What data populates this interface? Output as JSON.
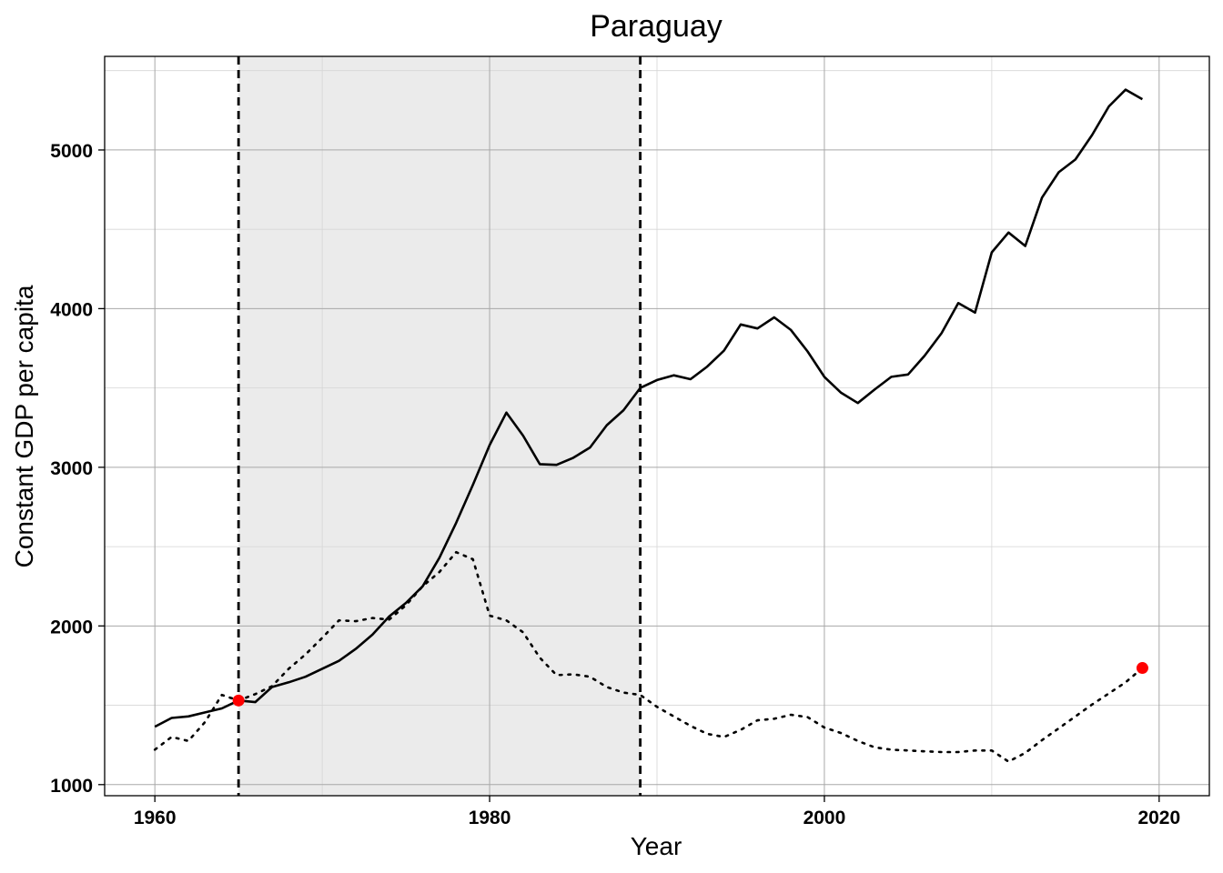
{
  "chart_data": {
    "type": "line",
    "title": "Paraguay",
    "xlabel": "Year",
    "ylabel": "Constant GDP per capita",
    "xlim": [
      1957,
      2023
    ],
    "ylim": [
      930,
      5590
    ],
    "x_ticks": [
      1960,
      1980,
      2000,
      2020
    ],
    "y_ticks": [
      1000,
      2000,
      3000,
      4000,
      5000
    ],
    "grid": true,
    "legend": "none",
    "shaded_period": [
      1965,
      1989
    ],
    "vertical_lines": [
      1965,
      1989
    ],
    "series": [
      {
        "style": "solid",
        "color": "#000000",
        "x": [
          1960,
          1961,
          1962,
          1963,
          1964,
          1965,
          1966,
          1967,
          1968,
          1969,
          1970,
          1971,
          1972,
          1973,
          1974,
          1975,
          1976,
          1977,
          1978,
          1979,
          1980,
          1981,
          1982,
          1983,
          1984,
          1985,
          1986,
          1987,
          1988,
          1989,
          1990,
          1991,
          1992,
          1993,
          1994,
          1995,
          1996,
          1997,
          1998,
          1999,
          2000,
          2001,
          2002,
          2003,
          2004,
          2005,
          2006,
          2007,
          2008,
          2009,
          2010,
          2011,
          2012,
          2013,
          2014,
          2015,
          2016,
          2017,
          2018,
          2019
        ],
        "values": [
          1365,
          1420,
          1430,
          1455,
          1480,
          1530,
          1520,
          1615,
          1645,
          1680,
          1730,
          1780,
          1855,
          1945,
          2060,
          2145,
          2250,
          2430,
          2650,
          2890,
          3140,
          3345,
          3200,
          3020,
          3015,
          3060,
          3125,
          3265,
          3360,
          3500,
          3550,
          3580,
          3555,
          3635,
          3735,
          3900,
          3875,
          3945,
          3865,
          3730,
          3570,
          3470,
          3405,
          3490,
          3570,
          3585,
          3705,
          3845,
          4035,
          3975,
          4355,
          4480,
          4395,
          4700,
          4860,
          4940,
          5095,
          5275,
          5380,
          5320
        ]
      },
      {
        "style": "dotted",
        "color": "#000000",
        "x": [
          1960,
          1961,
          1962,
          1963,
          1964,
          1965,
          1966,
          1967,
          1968,
          1969,
          1970,
          1971,
          1972,
          1973,
          1974,
          1975,
          1976,
          1977,
          1978,
          1979,
          1980,
          1981,
          1982,
          1983,
          1984,
          1985,
          1986,
          1987,
          1988,
          1989,
          1990,
          1991,
          1992,
          1993,
          1994,
          1995,
          1996,
          1997,
          1998,
          1999,
          2000,
          2001,
          2002,
          2003,
          2004,
          2005,
          2006,
          2007,
          2008,
          2009,
          2010,
          2011,
          2012,
          2013,
          2014,
          2015,
          2016,
          2017,
          2018,
          2019
        ],
        "values": [
          1220,
          1300,
          1275,
          1395,
          1565,
          1530,
          1570,
          1620,
          1730,
          1820,
          1925,
          2035,
          2030,
          2050,
          2040,
          2130,
          2250,
          2340,
          2465,
          2420,
          2065,
          2035,
          1960,
          1800,
          1690,
          1695,
          1680,
          1615,
          1580,
          1565,
          1490,
          1430,
          1370,
          1320,
          1300,
          1345,
          1405,
          1415,
          1440,
          1425,
          1360,
          1325,
          1275,
          1235,
          1220,
          1215,
          1210,
          1205,
          1205,
          1215,
          1215,
          1145,
          1200,
          1280,
          1355,
          1430,
          1505,
          1575,
          1645,
          1735
        ]
      }
    ],
    "highlight_points": [
      {
        "x": 1965,
        "y": 1530,
        "color": "#ff0000"
      },
      {
        "x": 2019,
        "y": 1735,
        "color": "#ff0000"
      }
    ]
  }
}
